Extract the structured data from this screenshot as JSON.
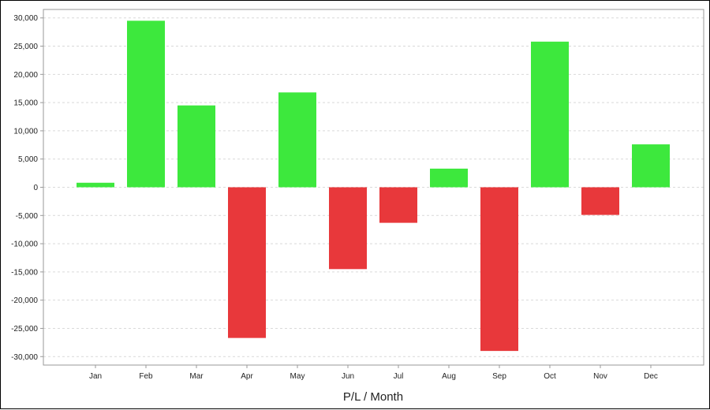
{
  "chart_data": {
    "type": "bar",
    "title": "",
    "xlabel": "P/L / Month",
    "ylabel": "",
    "categories": [
      "Jan",
      "Feb",
      "Mar",
      "Apr",
      "May",
      "Jun",
      "Jul",
      "Aug",
      "Sep",
      "Oct",
      "Nov",
      "Dec"
    ],
    "series": [
      {
        "values": [
          800,
          29500,
          14500,
          -26700,
          16800,
          -14500,
          -6300,
          3300,
          -29000,
          25800,
          -4900,
          7600
        ]
      }
    ],
    "ylim": [
      -31500,
      31500
    ],
    "yticks": [
      30000,
      25000,
      20000,
      15000,
      10000,
      5000,
      0,
      -5000,
      -10000,
      -15000,
      -20000,
      -25000,
      -30000
    ],
    "ytick_labels": [
      "30,000",
      "25,000",
      "20,000",
      "15,000",
      "10,000",
      "5,000",
      "0",
      "-5,000",
      "-10,000",
      "-15,000",
      "-20,000",
      "-25,000",
      "-30,000"
    ],
    "grid": true,
    "legend": "none",
    "colors": {
      "positive": "#3de83d",
      "negative": "#e8383b",
      "grid": "#d9d9d9",
      "axis": "#999999"
    }
  }
}
